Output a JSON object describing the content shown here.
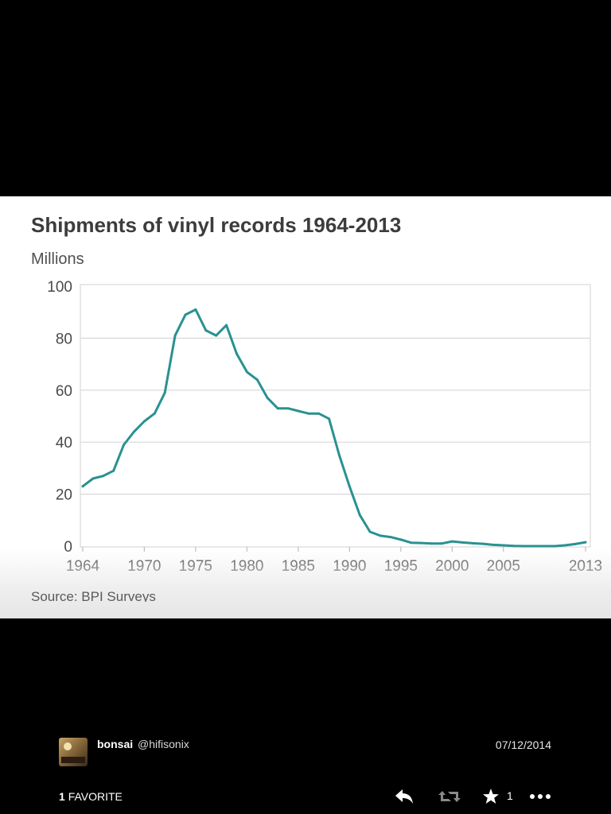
{
  "photo": {
    "title": "Shipments of vinyl records 1964-2013",
    "unit": "Millions",
    "source": "Source: BPI Surveys"
  },
  "chart_data": {
    "type": "line",
    "title": "Shipments of vinyl records 1964-2013",
    "ylabel": "Millions",
    "xlabel": "",
    "xlim": [
      1964,
      2013
    ],
    "ylim": [
      0,
      100
    ],
    "x_ticks": [
      "1964",
      "1970",
      "1975",
      "1980",
      "1985",
      "1990",
      "1995",
      "2000",
      "2005",
      "2013"
    ],
    "y_ticks": [
      "0",
      "20",
      "40",
      "60",
      "80",
      "100"
    ],
    "grid": true,
    "legend": "none",
    "color": "#2a9191",
    "x": [
      1964,
      1965,
      1966,
      1967,
      1968,
      1969,
      1970,
      1971,
      1972,
      1973,
      1974,
      1975,
      1976,
      1977,
      1978,
      1979,
      1980,
      1981,
      1982,
      1983,
      1984,
      1985,
      1986,
      1987,
      1988,
      1989,
      1990,
      1991,
      1992,
      1993,
      1994,
      1995,
      1996,
      1997,
      1998,
      1999,
      2000,
      2001,
      2002,
      2003,
      2004,
      2005,
      2006,
      2007,
      2008,
      2009,
      2010,
      2011,
      2012,
      2013
    ],
    "values": [
      23,
      26,
      27,
      29,
      39,
      44,
      48,
      51,
      59,
      81,
      89,
      91,
      83,
      81,
      85,
      74,
      67,
      64,
      57,
      53,
      53,
      52,
      51,
      51,
      49,
      35,
      23,
      12,
      5.5,
      4,
      3.5,
      2.5,
      1.3,
      1.2,
      1,
      1,
      1.8,
      1.4,
      1.1,
      0.9,
      0.5,
      0.3,
      0.1,
      0,
      0,
      0,
      0,
      0.3,
      0.8,
      1.5
    ]
  },
  "tweet": {
    "user_name": "bonsai",
    "user_handle": "@hifisonix",
    "date": "07/12/2014",
    "favorite_count": "1",
    "favorite_label": "FAVORITE",
    "favorite_action_count": "1",
    "icons": [
      "reply-icon",
      "retweet-icon",
      "star-icon",
      "more-icon"
    ]
  }
}
